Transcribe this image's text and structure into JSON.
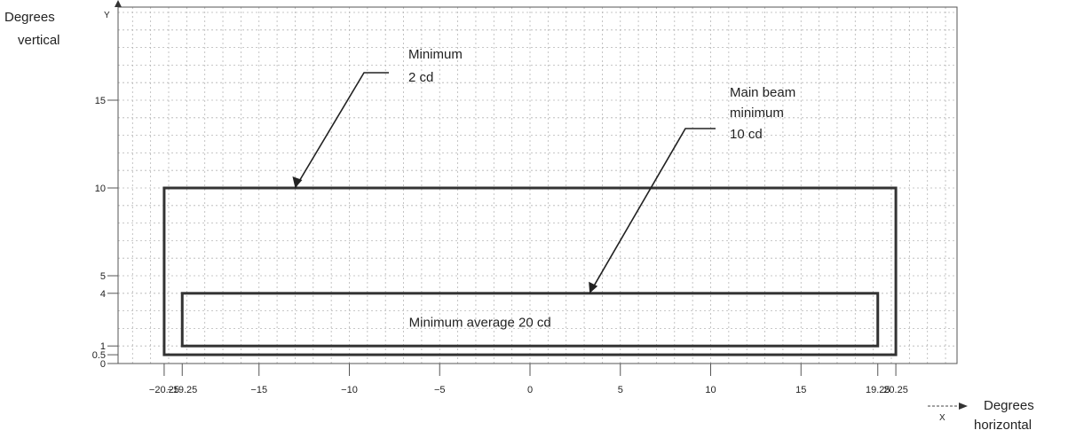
{
  "chart_data": {
    "type": "diagram",
    "y_axis_title": [
      "Degrees",
      "vertical"
    ],
    "y_axis_symbol": "Y",
    "x_axis_title": [
      "Degrees",
      "horizontal"
    ],
    "x_axis_symbol": "X",
    "x_ticks": [
      {
        "value": -20.25,
        "label": "−20.25"
      },
      {
        "value": -19.25,
        "label": "−19.25"
      },
      {
        "value": -15,
        "label": "−15"
      },
      {
        "value": -10,
        "label": "−10"
      },
      {
        "value": -5,
        "label": "−5"
      },
      {
        "value": 0,
        "label": "0"
      },
      {
        "value": 5,
        "label": "5"
      },
      {
        "value": 10,
        "label": "10"
      },
      {
        "value": 15,
        "label": "15"
      },
      {
        "value": 19.25,
        "label": "19.25"
      },
      {
        "value": 20.25,
        "label": "20.25"
      }
    ],
    "y_ticks": [
      {
        "value": 0,
        "label": "0"
      },
      {
        "value": 0.5,
        "label": "0.5"
      },
      {
        "value": 1,
        "label": "1"
      },
      {
        "value": 4,
        "label": "4"
      },
      {
        "value": 5,
        "label": "5"
      },
      {
        "value": 10,
        "label": "10"
      },
      {
        "value": 15,
        "label": "15"
      }
    ],
    "regions": [
      {
        "name": "outer",
        "x": [
          -20.25,
          20.25
        ],
        "y": [
          0.5,
          10
        ]
      },
      {
        "name": "inner",
        "x": [
          -19.25,
          19.25
        ],
        "y": [
          1,
          4
        ]
      }
    ],
    "annotations": {
      "minimum": {
        "lines": [
          "Minimum",
          "2 cd"
        ],
        "target": [
          -13,
          10
        ]
      },
      "main_beam": {
        "lines": [
          "Main beam",
          "minimum",
          "10 cd"
        ],
        "target": [
          3.3,
          4
        ]
      },
      "inner_label": "Minimum average  20 cd"
    }
  }
}
